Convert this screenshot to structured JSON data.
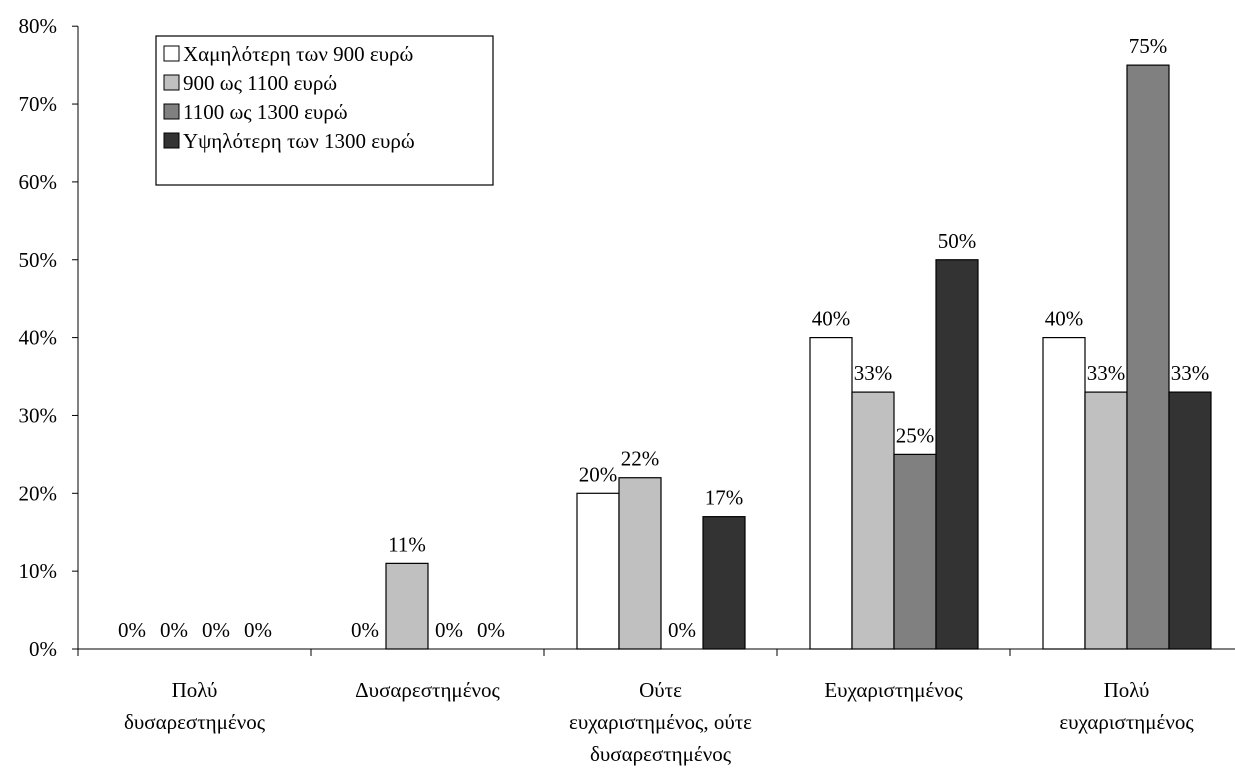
{
  "chart_data": {
    "type": "bar",
    "categories": [
      [
        "Πολύ",
        "δυσαρεστημένος"
      ],
      [
        "Δυσαρεστημένος"
      ],
      [
        "Ούτε",
        "ευχαριστημένος, ούτε",
        "δυσαρεστημένος"
      ],
      [
        "Ευχαριστημένος"
      ],
      [
        "Πολύ",
        "ευχαριστημένος"
      ]
    ],
    "series": [
      {
        "name": "Χαμηλότερη των 900 ευρώ",
        "color": "#ffffff",
        "values": [
          0,
          0,
          20,
          40,
          40
        ],
        "labels": [
          "0%",
          "0%",
          "20%",
          "40%",
          "40%"
        ]
      },
      {
        "name": "900 ως 1100 ευρώ",
        "color": "#c0c0c0",
        "values": [
          0,
          11,
          22,
          33,
          33
        ],
        "labels": [
          "0%",
          "11%",
          "22%",
          "33%",
          "33%"
        ]
      },
      {
        "name": "1100 ως 1300 ευρώ",
        "color": "#808080",
        "values": [
          0,
          0,
          0,
          25,
          75
        ],
        "labels": [
          "0%",
          "0%",
          "0%",
          "25%",
          "75%"
        ]
      },
      {
        "name": "Υψηλότερη των 1300 ευρώ",
        "color": "#333333",
        "values": [
          0,
          0,
          17,
          50,
          33
        ],
        "labels": [
          "0%",
          "0%",
          "17%",
          "50%",
          "33%"
        ]
      }
    ],
    "ylim": [
      0,
      80
    ],
    "yticks": [
      "0%",
      "10%",
      "20%",
      "30%",
      "40%",
      "50%",
      "60%",
      "70%",
      "80%"
    ],
    "legend_position": "top-left",
    "grid": false
  }
}
